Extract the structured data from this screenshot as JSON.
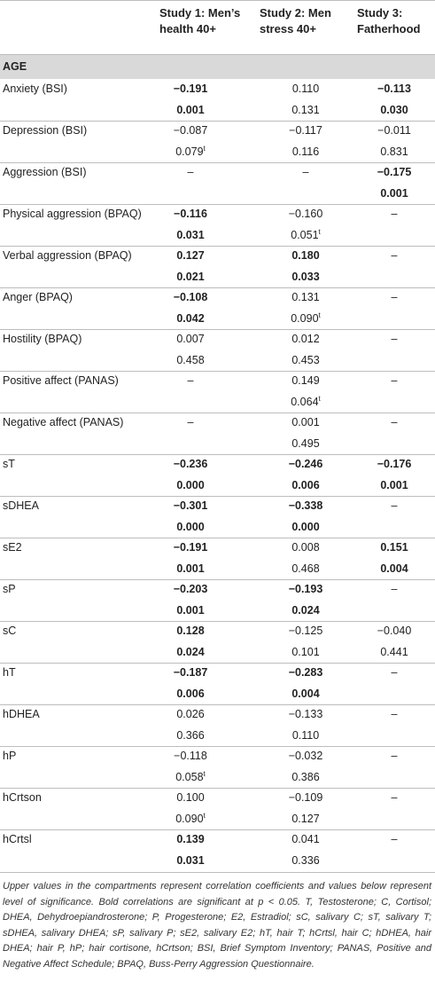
{
  "table": {
    "columns": [
      "Study 1: Men’s health 40+",
      "Study 2: Men stress 40+",
      "Study 3: Fatherhood"
    ],
    "section": "AGE",
    "rows": [
      {
        "label": "Anxiety (BSI)",
        "coef": [
          "−0.191",
          "0.110",
          "−0.113"
        ],
        "p": [
          "0.001",
          "0.131",
          "0.030"
        ],
        "bold": [
          true,
          false,
          true
        ]
      },
      {
        "label": "Depression (BSI)",
        "coef": [
          "−0.087",
          "−0.117",
          "−0.011"
        ],
        "p": [
          {
            "value": "0.079",
            "sup": "t"
          },
          "0.116",
          "0.831"
        ],
        "bold": [
          false,
          false,
          false
        ]
      },
      {
        "label": "Aggression (BSI)",
        "coef": [
          "–",
          "–",
          "−0.175"
        ],
        "p": [
          null,
          null,
          "0.001"
        ],
        "bold": [
          false,
          false,
          true
        ]
      },
      {
        "label": "Physical aggression (BPAQ)",
        "coef": [
          "−0.116",
          "−0.160",
          "–"
        ],
        "p": [
          "0.031",
          {
            "value": "0.051",
            "sup": "t"
          },
          null
        ],
        "bold": [
          true,
          false,
          false
        ]
      },
      {
        "label": "Verbal aggression (BPAQ)",
        "coef": [
          "0.127",
          "0.180",
          "–"
        ],
        "p": [
          "0.021",
          "0.033",
          null
        ],
        "bold": [
          true,
          true,
          false
        ]
      },
      {
        "label": "Anger (BPAQ)",
        "coef": [
          "−0.108",
          "0.131",
          "–"
        ],
        "p": [
          "0.042",
          {
            "value": "0.090",
            "sup": "t"
          },
          null
        ],
        "bold": [
          true,
          false,
          false
        ]
      },
      {
        "label": "Hostility (BPAQ)",
        "coef": [
          "0.007",
          "0.012",
          "–"
        ],
        "p": [
          "0.458",
          "0.453",
          null
        ],
        "bold": [
          false,
          false,
          false
        ]
      },
      {
        "label": "Positive affect (PANAS)",
        "coef": [
          "–",
          "0.149",
          "–"
        ],
        "p": [
          null,
          {
            "value": "0.064",
            "sup": "t"
          },
          null
        ],
        "bold": [
          false,
          false,
          false
        ]
      },
      {
        "label": "Negative affect (PANAS)",
        "coef": [
          "–",
          "0.001",
          "–"
        ],
        "p": [
          null,
          "0.495",
          null
        ],
        "bold": [
          false,
          false,
          false
        ]
      },
      {
        "label": "sT",
        "coef": [
          "−0.236",
          "−0.246",
          "−0.176"
        ],
        "p": [
          "0.000",
          "0.006",
          "0.001"
        ],
        "bold": [
          true,
          true,
          true
        ]
      },
      {
        "label": "sDHEA",
        "coef": [
          "−0.301",
          "−0.338",
          "–"
        ],
        "p": [
          "0.000",
          "0.000",
          null
        ],
        "bold": [
          true,
          true,
          false
        ]
      },
      {
        "label": "sE2",
        "coef": [
          "−0.191",
          "0.008",
          "0.151"
        ],
        "p": [
          "0.001",
          "0.468",
          "0.004"
        ],
        "bold": [
          true,
          false,
          true
        ]
      },
      {
        "label": "sP",
        "coef": [
          "−0.203",
          "−0.193",
          "–"
        ],
        "p": [
          "0.001",
          "0.024",
          null
        ],
        "bold": [
          true,
          true,
          false
        ]
      },
      {
        "label": "sC",
        "coef": [
          "0.128",
          "−0.125",
          "−0.040"
        ],
        "p": [
          "0.024",
          "0.101",
          "0.441"
        ],
        "bold": [
          true,
          false,
          false
        ]
      },
      {
        "label": "hT",
        "coef": [
          "−0.187",
          "−0.283",
          "–"
        ],
        "p": [
          "0.006",
          "0.004",
          null
        ],
        "bold": [
          true,
          true,
          false
        ]
      },
      {
        "label": "hDHEA",
        "coef": [
          "0.026",
          "−0.133",
          "–"
        ],
        "p": [
          "0.366",
          "0.110",
          null
        ],
        "bold": [
          false,
          false,
          false
        ]
      },
      {
        "label": "hP",
        "coef": [
          "−0.118",
          "−0.032",
          "–"
        ],
        "p": [
          {
            "value": "0.058",
            "sup": "t"
          },
          "0.386",
          null
        ],
        "bold": [
          false,
          false,
          false
        ]
      },
      {
        "label": "hCrtson",
        "coef": [
          "0.100",
          "−0.109",
          "–"
        ],
        "p": [
          {
            "value": "0.090",
            "sup": "t"
          },
          "0.127",
          null
        ],
        "bold": [
          false,
          false,
          false
        ]
      },
      {
        "label": "hCrtsl",
        "coef": [
          "0.139",
          "0.041",
          "–"
        ],
        "p": [
          "0.031",
          "0.336",
          null
        ],
        "bold": [
          true,
          false,
          false
        ]
      }
    ],
    "footnote": "Upper values in the compartments represent correlation coefficients and values below represent level of significance. Bold correlations are significant at p < 0.05. T, Testosterone; C, Cortisol; DHEA, Dehydroepiandrosterone; P, Progesterone; E2, Estradiol; sC, salivary C; sT, salivary T; sDHEA, salivary DHEA; sP, salivary P; sE2, salivary E2; hT, hair T; hCrtsl, hair C; hDHEA, hair DHEA; hair P, hP; hair cortisone, hCrtson; BSI, Brief Symptom Inventory; PANAS, Positive and Negative Affect Schedule; BPAQ, Buss-Perry Aggression Questionnaire."
  }
}
